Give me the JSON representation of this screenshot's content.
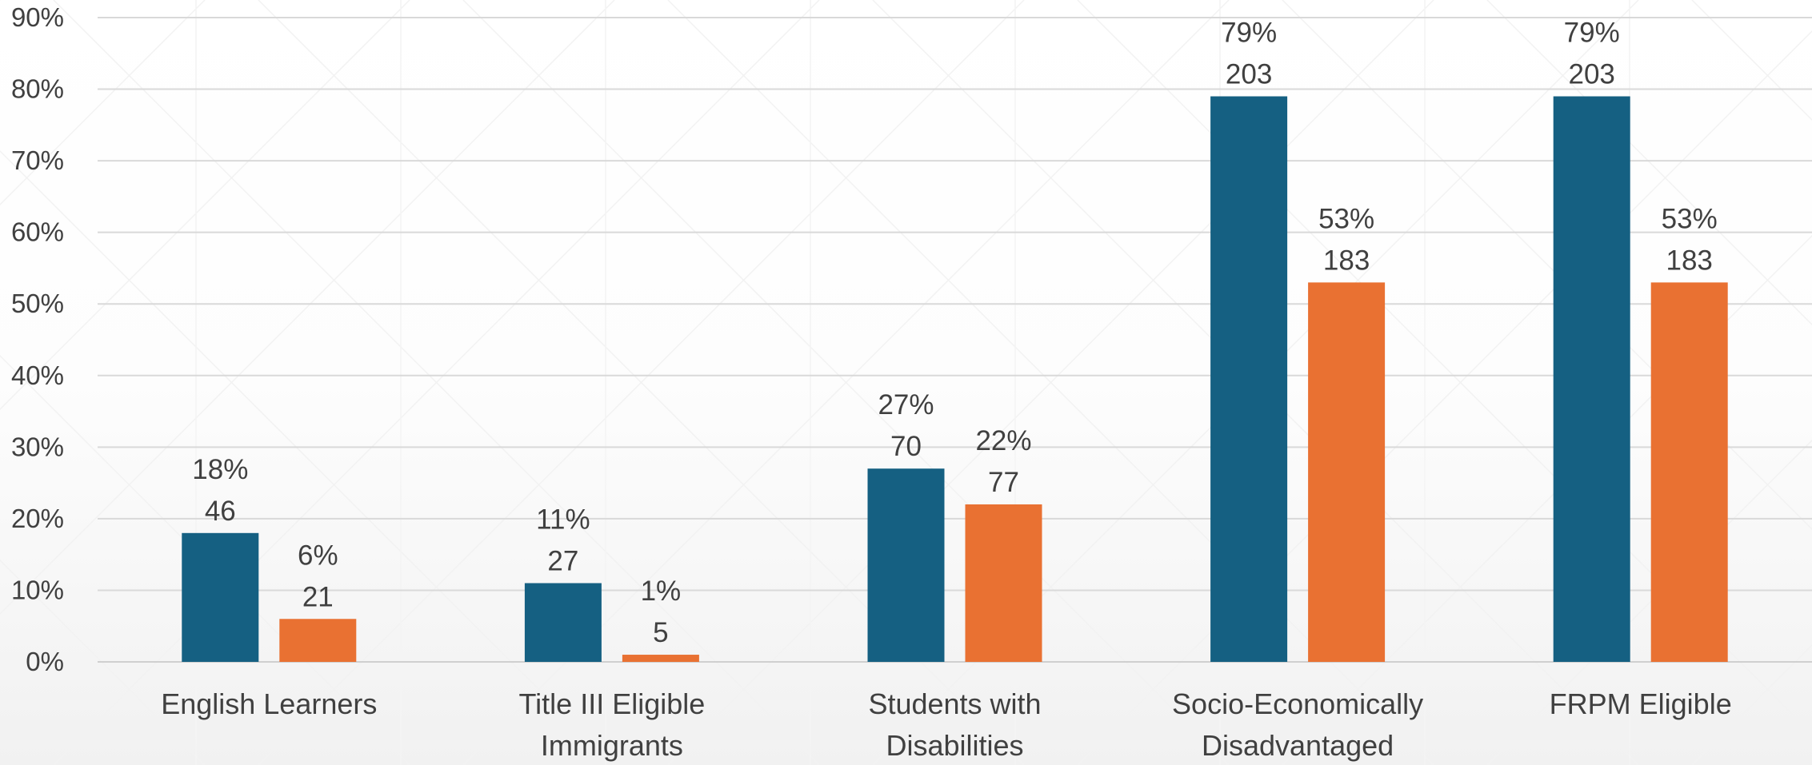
{
  "chart_data": {
    "type": "bar",
    "categories": [
      [
        "English Learners"
      ],
      [
        "Title III Eligible",
        "Immigrants"
      ],
      [
        "Students with",
        "Disabilities"
      ],
      [
        "Socio-Economically",
        "Disadvantaged"
      ],
      [
        "FRPM Eligible"
      ]
    ],
    "series": [
      {
        "color": "#156082",
        "values": [
          18,
          11,
          27,
          79,
          79
        ],
        "percent_labels": [
          "18%",
          "11%",
          "27%",
          "79%",
          "79%"
        ],
        "count_labels": [
          "46",
          "27",
          "70",
          "203",
          "203"
        ]
      },
      {
        "color": "#E97132",
        "values": [
          6,
          1,
          22,
          53,
          53
        ],
        "percent_labels": [
          "6%",
          "1%",
          "22%",
          "53%",
          "53%"
        ],
        "count_labels": [
          "21",
          "5",
          "77",
          "183",
          "183"
        ]
      }
    ],
    "y_tick_labels": [
      "0%",
      "10%",
      "20%",
      "30%",
      "40%",
      "50%",
      "60%",
      "70%",
      "80%",
      "90%"
    ],
    "ylim": [
      0,
      90
    ],
    "grid": true,
    "legend": "none",
    "title": "",
    "xlabel": "",
    "ylabel": ""
  }
}
